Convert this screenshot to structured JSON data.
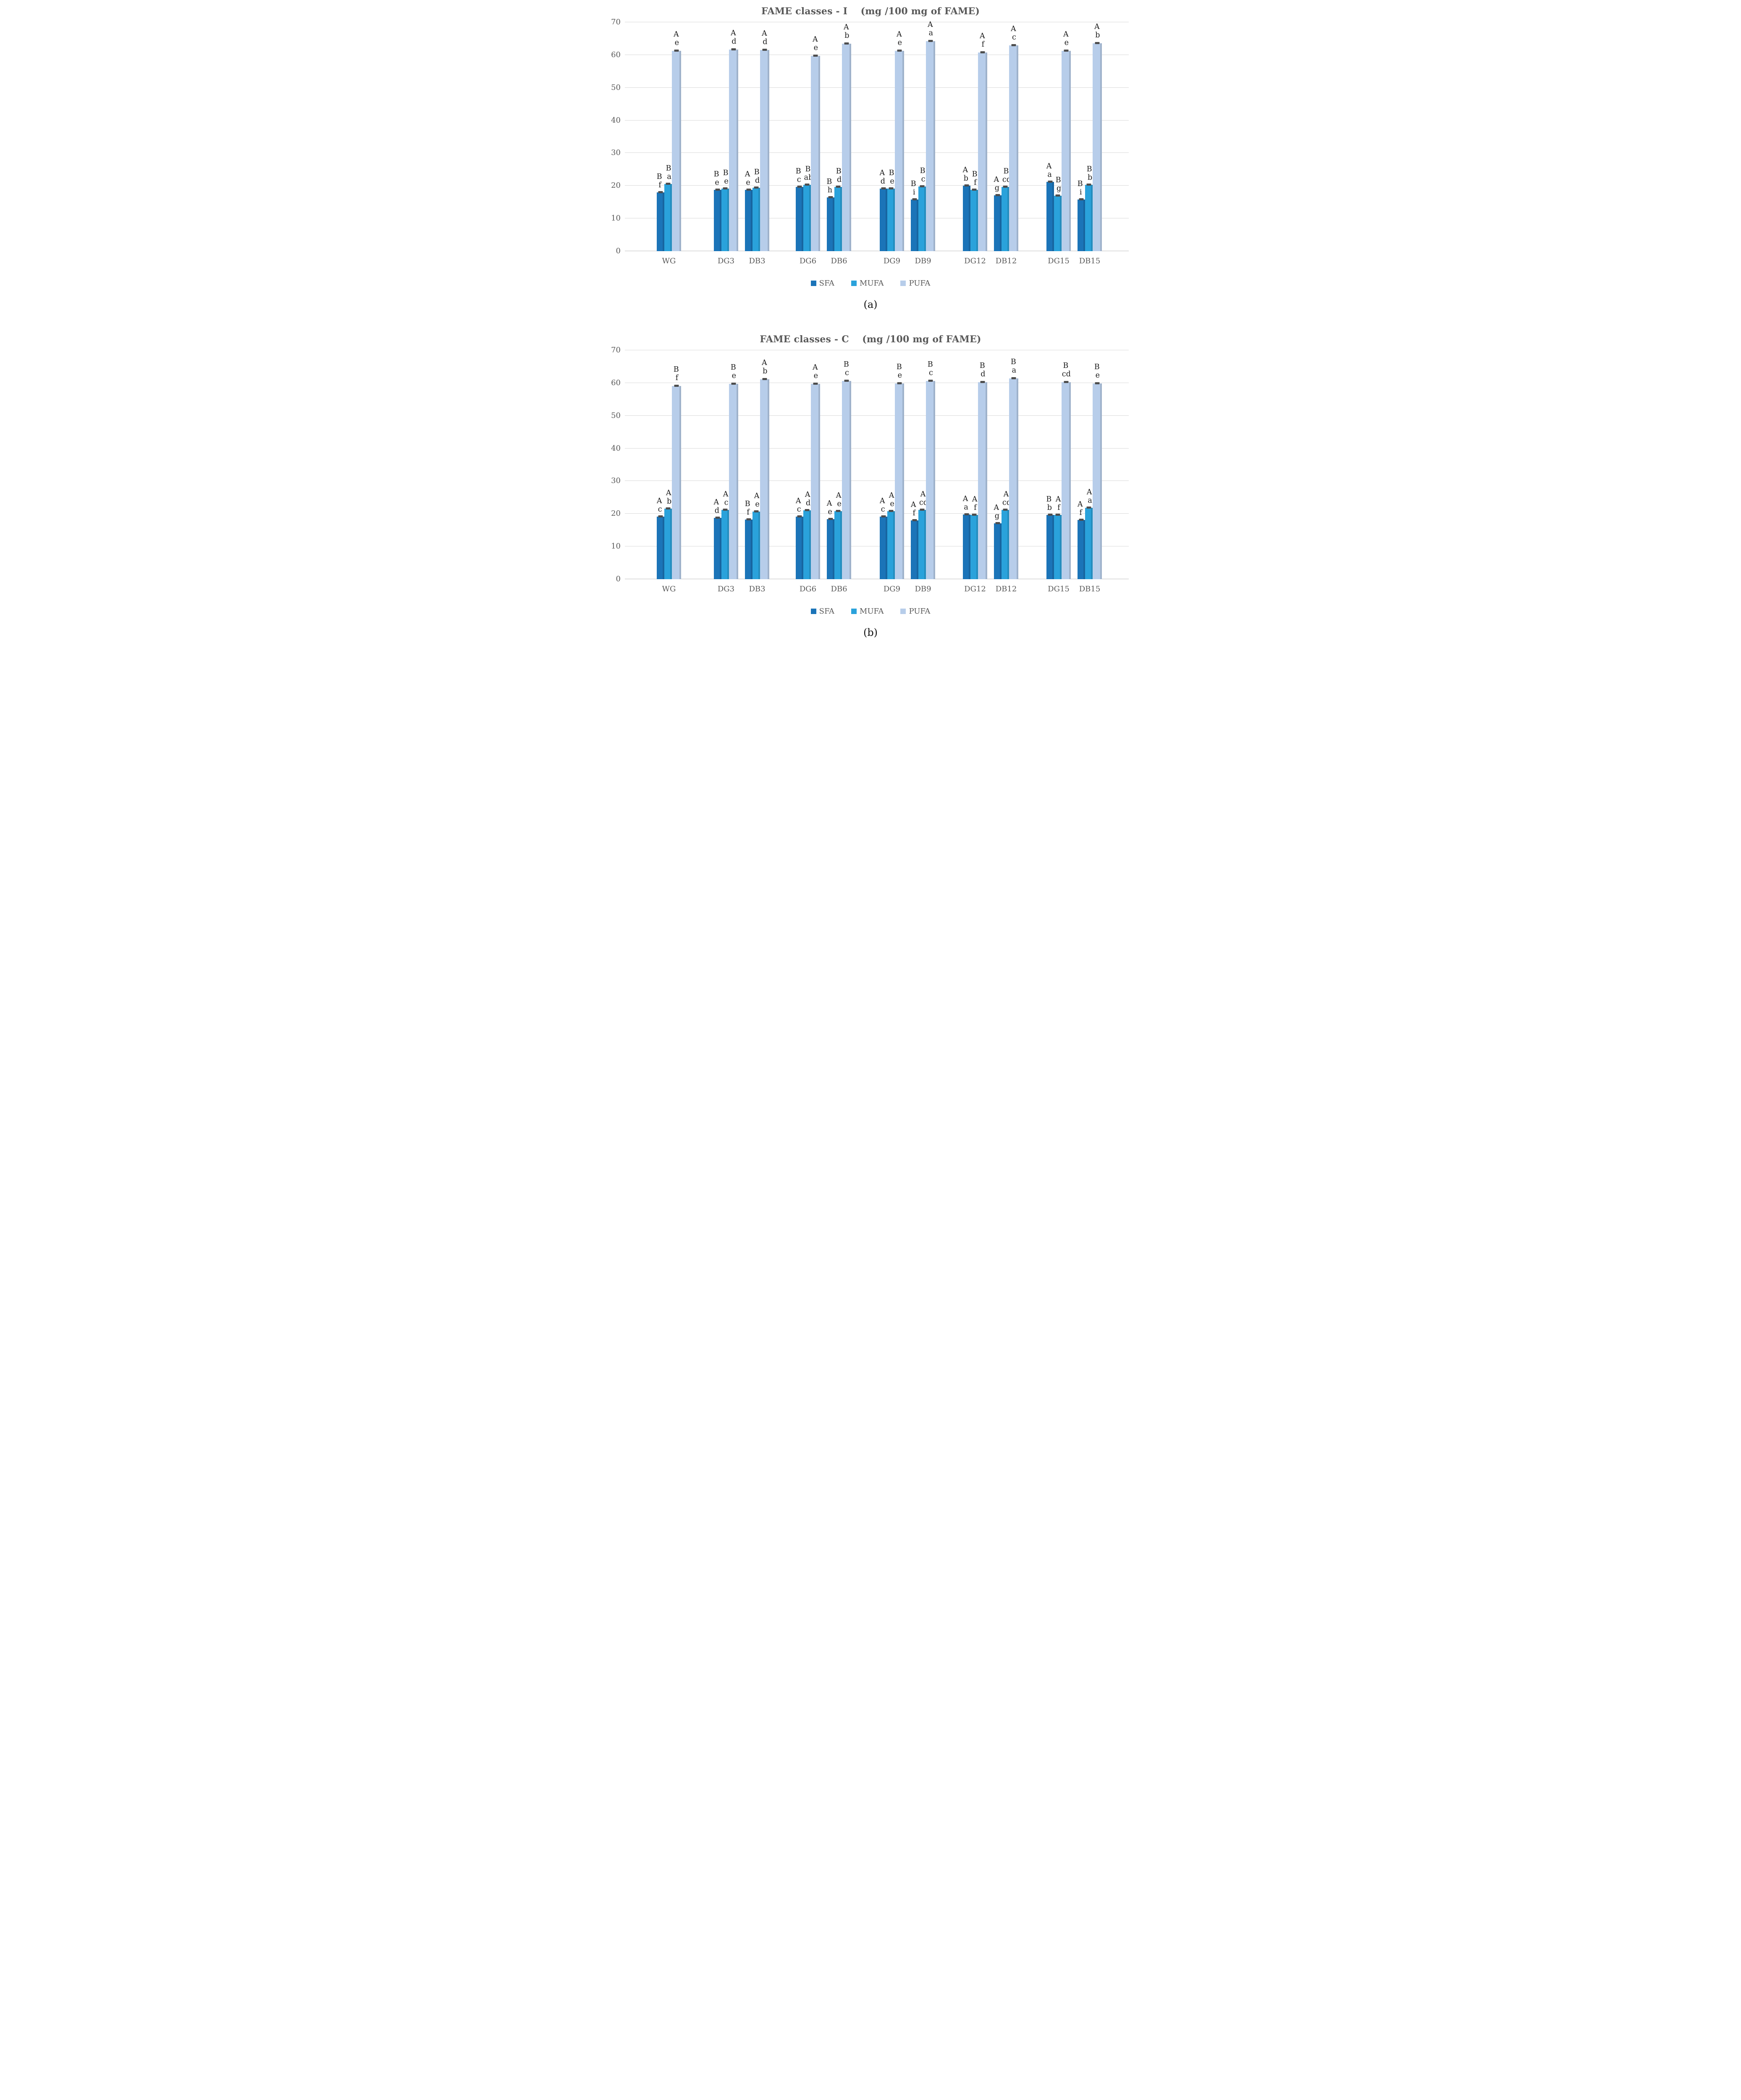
{
  "colors": {
    "sfa": "#1B74B8",
    "mufa": "#2AA2DB",
    "pufa": "#B7CDEA",
    "error_bar": "#4D4D4D",
    "grid": "#D9D9D9",
    "axis_text": "#595959",
    "title_text": "#595959",
    "annotation_text": "#1A1A1A"
  },
  "chart_data": [
    {
      "type": "bar",
      "panel": "a",
      "title": "FAME classes - I    (mg /100 mg of FAME)",
      "caption": "(a)",
      "ylabel": "",
      "ylim": [
        0,
        70
      ],
      "ytick_step": 10,
      "yticks": [
        0,
        10,
        20,
        30,
        40,
        50,
        60,
        70
      ],
      "grid": true,
      "error_bars": true,
      "legend_position": "bottom",
      "categories": [
        "WG",
        "DG3",
        "DB3",
        "DG6",
        "DB6",
        "DG9",
        "DB9",
        "DG12",
        "DB12",
        "DG15",
        "DB15"
      ],
      "series": [
        {
          "name": "SFA",
          "color": "#1B74B8",
          "values": [
            18.0,
            18.8,
            18.8,
            19.6,
            16.5,
            19.2,
            15.8,
            20.0,
            17.1,
            21.2,
            15.8
          ],
          "letters": [
            [
              "B",
              "f"
            ],
            [
              "B",
              "e"
            ],
            [
              "A",
              "e"
            ],
            [
              "B",
              "c"
            ],
            [
              "B",
              "h"
            ],
            [
              "A",
              "d"
            ],
            [
              "B",
              "i"
            ],
            [
              "A",
              "b"
            ],
            [
              "A",
              "g"
            ],
            [
              "A",
              "a"
            ],
            [
              "B",
              "i"
            ]
          ]
        },
        {
          "name": "MUFA",
          "color": "#2AA2DB",
          "values": [
            20.5,
            19.2,
            19.4,
            20.3,
            19.6,
            19.2,
            19.8,
            18.8,
            19.6,
            17.0,
            20.3
          ],
          "letters": [
            [
              "B",
              "a"
            ],
            [
              "B",
              "e"
            ],
            [
              "B",
              "d"
            ],
            [
              "B",
              "ab"
            ],
            [
              "B",
              "d"
            ],
            [
              "B",
              "e"
            ],
            [
              "B",
              "c"
            ],
            [
              "B",
              "f"
            ],
            [
              "B",
              "cd"
            ],
            [
              "B",
              "g"
            ],
            [
              "B",
              "b"
            ]
          ]
        },
        {
          "name": "PUFA",
          "color": "#B7CDEA",
          "values": [
            61.3,
            61.6,
            61.5,
            59.7,
            63.5,
            61.3,
            64.2,
            60.8,
            62.9,
            61.3,
            63.6
          ],
          "letters": [
            [
              "A",
              "e"
            ],
            [
              "A",
              "d"
            ],
            [
              "A",
              "d"
            ],
            [
              "A",
              "e"
            ],
            [
              "A",
              "b"
            ],
            [
              "A",
              "e"
            ],
            [
              "A",
              "a"
            ],
            [
              "A",
              "f"
            ],
            [
              "A",
              "c"
            ],
            [
              "A",
              "e"
            ],
            [
              "A",
              "b"
            ]
          ]
        }
      ]
    },
    {
      "type": "bar",
      "panel": "b",
      "title": "FAME classes - C    (mg /100 mg of FAME)",
      "caption": "(b)",
      "ylabel": "",
      "ylim": [
        0,
        70
      ],
      "ytick_step": 10,
      "yticks": [
        0,
        10,
        20,
        30,
        40,
        50,
        60,
        70
      ],
      "grid": true,
      "error_bars": true,
      "legend_position": "bottom",
      "categories": [
        "WG",
        "DG3",
        "DB3",
        "DG6",
        "DB6",
        "DG9",
        "DB9",
        "DG12",
        "DB12",
        "DG15",
        "DB15"
      ],
      "series": [
        {
          "name": "SFA",
          "color": "#1B74B8",
          "values": [
            19.1,
            18.8,
            18.2,
            19.2,
            18.4,
            19.2,
            18.0,
            19.8,
            17.1,
            19.7,
            18.1
          ],
          "letters": [
            [
              "A",
              "c"
            ],
            [
              "A",
              "d"
            ],
            [
              "B",
              "f"
            ],
            [
              "A",
              "c"
            ],
            [
              "A",
              "e"
            ],
            [
              "A",
              "c"
            ],
            [
              "A",
              "f"
            ],
            [
              "A",
              "a"
            ],
            [
              "A",
              "g"
            ],
            [
              "B",
              "b"
            ],
            [
              "A",
              "f"
            ]
          ]
        },
        {
          "name": "MUFA",
          "color": "#2AA2DB",
          "values": [
            21.6,
            21.2,
            20.7,
            21.1,
            20.8,
            20.8,
            21.2,
            19.7,
            21.2,
            19.7,
            21.9
          ],
          "letters": [
            [
              "A",
              "b"
            ],
            [
              "A",
              "c"
            ],
            [
              "A",
              "e"
            ],
            [
              "A",
              "d"
            ],
            [
              "A",
              "e"
            ],
            [
              "A",
              "e"
            ],
            [
              "A",
              "cd"
            ],
            [
              "A",
              "f"
            ],
            [
              "A",
              "cd"
            ],
            [
              "A",
              "f"
            ],
            [
              "A",
              "a"
            ]
          ]
        },
        {
          "name": "PUFA",
          "color": "#B7CDEA",
          "values": [
            59.1,
            59.7,
            61.2,
            59.7,
            60.6,
            59.8,
            60.6,
            60.2,
            61.4,
            60.3,
            59.8
          ],
          "letters": [
            [
              "B",
              "f"
            ],
            [
              "B",
              "e"
            ],
            [
              "A",
              "b"
            ],
            [
              "A",
              "e"
            ],
            [
              "B",
              "c"
            ],
            [
              "B",
              "e"
            ],
            [
              "B",
              "c"
            ],
            [
              "B",
              "d"
            ],
            [
              "B",
              "a"
            ],
            [
              "B",
              "cd"
            ],
            [
              "B",
              "e"
            ]
          ]
        }
      ]
    }
  ]
}
